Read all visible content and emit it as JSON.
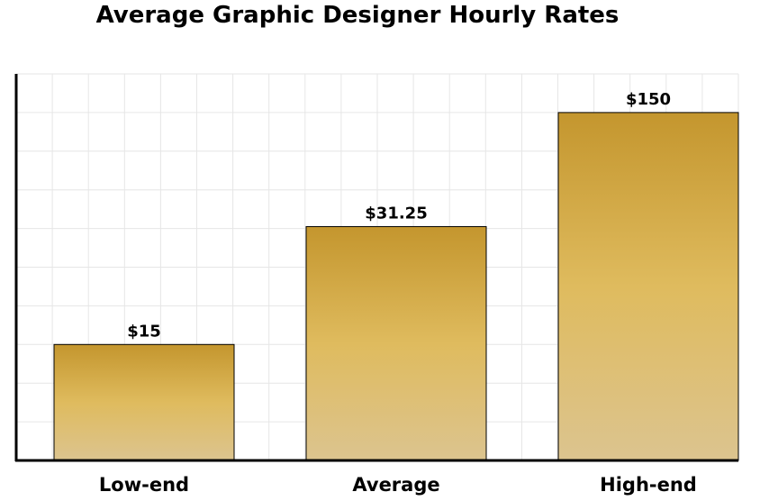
{
  "chart_data": {
    "type": "bar",
    "title": "Average Graphic Designer Hourly Rates",
    "categories": [
      "Low-end",
      "Average",
      "High-end"
    ],
    "values": [
      15,
      31.25,
      150
    ],
    "data_labels": [
      "$15",
      "$31.25",
      "$150"
    ],
    "grid": true,
    "legend": "none",
    "colors": {
      "bar_top": "#c4962e",
      "bar_mid": "#dfbb5e",
      "bar_bottom": "#dcc48f",
      "bar_outline": "#000000",
      "grid": "#e6e6e6",
      "axis": "#000000"
    }
  }
}
